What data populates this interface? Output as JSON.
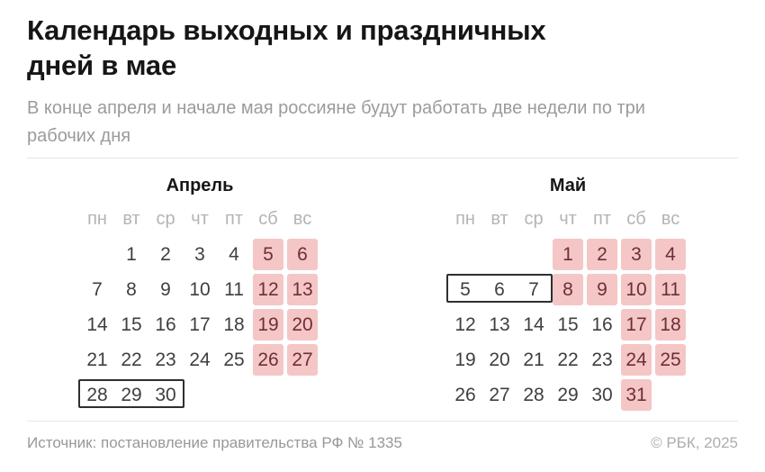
{
  "header": {
    "title": "Календарь выходных и праздничных дней в мае",
    "subtitle": "В конце апреля и начале мая россияне будут работать две недели по три рабочих дня"
  },
  "weekdays": [
    "пн",
    "вт",
    "ср",
    "чт",
    "пт",
    "сб",
    "вс"
  ],
  "calendars": [
    {
      "name": "Апрель",
      "first_day_col": 2,
      "num_days": 30,
      "holidays": [
        5,
        6,
        12,
        13,
        19,
        20,
        26,
        27
      ],
      "boxed_working_days": [
        28,
        29,
        30
      ]
    },
    {
      "name": "Май",
      "first_day_col": 4,
      "num_days": 31,
      "holidays": [
        1,
        2,
        3,
        4,
        8,
        9,
        10,
        11,
        17,
        18,
        24,
        25,
        31
      ],
      "boxed_working_days": [
        5,
        6,
        7
      ]
    }
  ],
  "footer": {
    "source": "Источник: постановление правительства РФ № 1335",
    "copyright": "© РБК, 2025"
  },
  "colors": {
    "holiday_bg": "#f5c6c6",
    "holiday_text": "#6e2f36",
    "box_border": "#2f2f2f"
  }
}
